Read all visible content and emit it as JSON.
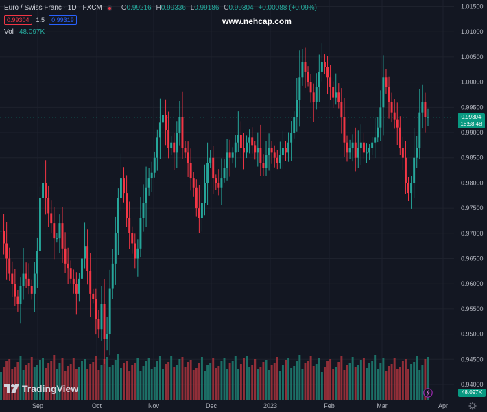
{
  "header": {
    "symbol_title": "Euro / Swiss Franc · 1D · FXCM",
    "ohlc": {
      "o_label": "O",
      "o_value": "0.99216",
      "h_label": "H",
      "h_value": "0.99336",
      "l_label": "L",
      "l_value": "0.99186",
      "c_label": "C",
      "c_value": "0.99304",
      "change": "+0.00088 (+0.09%)"
    },
    "sell_price": "0.99304",
    "spread": "1.5",
    "buy_price": "0.99319",
    "volume_label": "Vol",
    "volume_value": "48.097K"
  },
  "watermark": "www.nehcap.com",
  "brand": {
    "name": "TradingView",
    "logo_icon": "tradingview-logo-icon"
  },
  "price_axis_label": {
    "price": "0.99304",
    "countdown": "18:58:48"
  },
  "volume_axis_label": "48.097K",
  "icons": {
    "bolt": "lightning-bolt-icon",
    "settings": "gear-icon"
  },
  "colors": {
    "background": "#131722",
    "up": "#26a69a",
    "down": "#f23645",
    "up_volume": "#1f7f72",
    "down_volume": "#a8323c",
    "grid": "#1e222d",
    "text": "#b2b5be"
  },
  "chart_data": {
    "type": "candlestick",
    "ylim": [
      0.937,
      1.0163
    ],
    "y_ticks": [
      "1.01500",
      "1.01000",
      "1.00500",
      "1.00000",
      "0.99500",
      "0.99000",
      "0.98500",
      "0.98000",
      "0.97500",
      "0.97000",
      "0.96500",
      "0.96000",
      "0.95500",
      "0.95000",
      "0.94500",
      "0.94000"
    ],
    "x_ticks": [
      "Sep",
      "Oct",
      "Nov",
      "Dec",
      "2023",
      "Feb",
      "Mar",
      "Apr"
    ],
    "last_price": 0.99304,
    "start_open": 0.9705,
    "closes": [
      0.9705,
      0.968,
      0.965,
      0.962,
      0.96,
      0.9575,
      0.956,
      0.9595,
      0.962,
      0.961,
      0.9595,
      0.958,
      0.962,
      0.9665,
      0.977,
      0.98,
      0.977,
      0.974,
      0.972,
      0.969,
      0.969,
      0.972,
      0.967,
      0.964,
      0.963,
      0.961,
      0.96,
      0.958,
      0.961,
      0.965,
      0.9675,
      0.9625,
      0.958,
      0.957,
      0.953,
      0.951,
      0.956,
      0.949,
      0.95,
      0.959,
      0.964,
      0.97,
      0.977,
      0.981,
      0.978,
      0.973,
      0.97,
      0.968,
      0.965,
      0.967,
      0.973,
      0.976,
      0.979,
      0.981,
      0.982,
      0.985,
      0.989,
      0.992,
      0.9935,
      0.9905,
      0.987,
      0.988,
      0.986,
      0.99,
      0.993,
      0.987,
      0.986,
      0.984,
      0.981,
      0.979,
      0.975,
      0.973,
      0.976,
      0.98,
      0.984,
      0.985,
      0.981,
      0.98,
      0.979,
      0.981,
      0.983,
      0.986,
      0.985,
      0.986,
      0.988,
      0.9895,
      0.987,
      0.986,
      0.988,
      0.989,
      0.9875,
      0.986,
      0.987,
      0.984,
      0.983,
      0.9855,
      0.987,
      0.986,
      0.985,
      0.984,
      0.9855,
      0.987,
      0.986,
      0.988,
      0.99,
      0.993,
      0.9965,
      1.001,
      1.004,
      1.002,
      1.0,
      0.998,
      0.996,
      0.999,
      1.002,
      1.004,
      1.003,
      1.001,
      0.999,
      0.997,
      0.998,
      0.996,
      0.993,
      0.988,
      0.986,
      0.987,
      0.988,
      0.985,
      0.987,
      0.988,
      0.986,
      0.986,
      0.987,
      0.988,
      0.989,
      0.991,
      0.995,
      1.001,
      0.999,
      0.996,
      0.994,
      0.9925,
      0.991,
      0.987,
      0.985,
      0.98,
      0.978,
      0.98,
      0.985,
      0.987,
      0.994,
      0.996,
      0.993,
      0.99304
    ]
  }
}
